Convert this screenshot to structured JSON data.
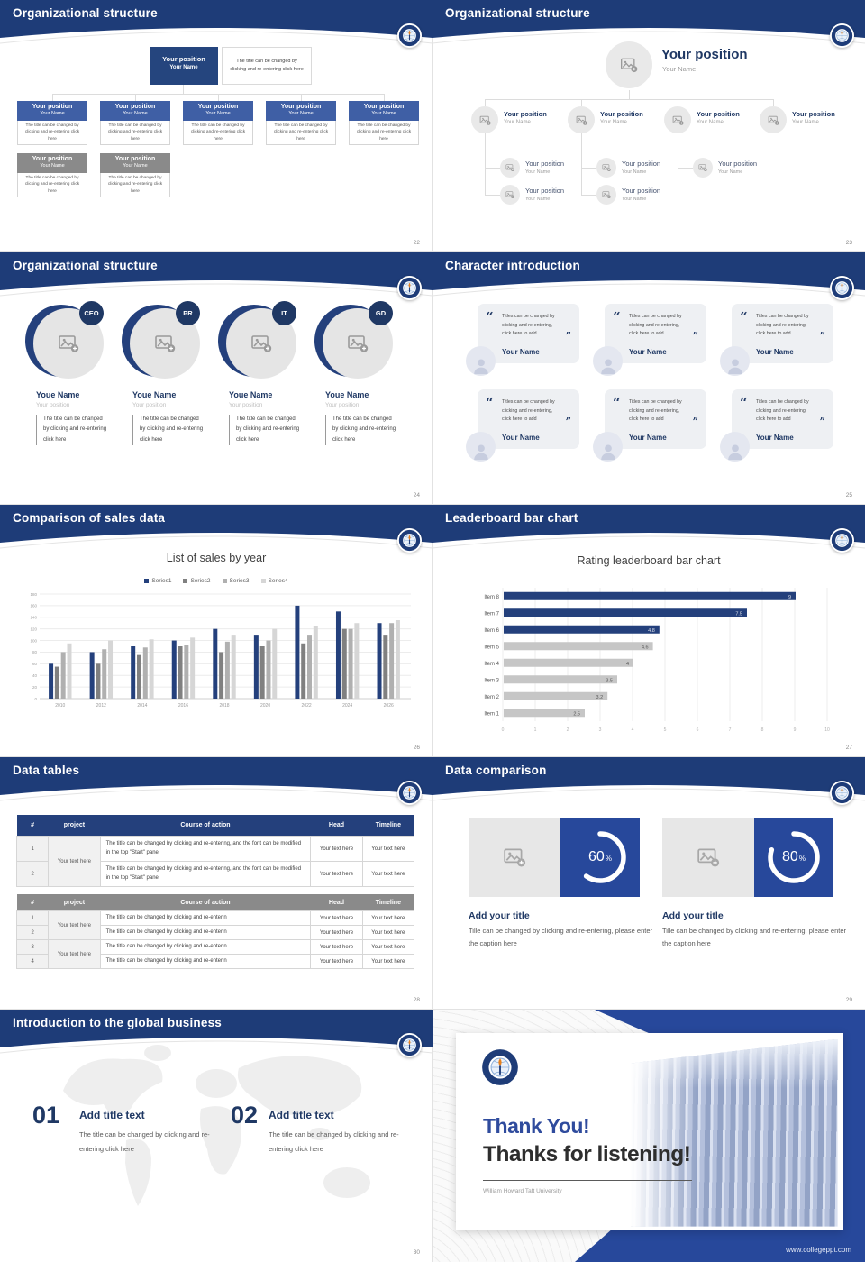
{
  "colors": {
    "navy_header": "#1e3c78",
    "accent": "#1f3864",
    "box_blue": "#3f5fa5",
    "box_gray": "#8a8a8a",
    "donut_blue": "#27489b",
    "bar_navy": "#24407c",
    "bar_gray": "#c6c6c6"
  },
  "texts": {
    "position": "Your position",
    "name": "Your Name",
    "change_click": "The title can be changed by clicking and re-entering click here",
    "youe_name": "Youe Name",
    "quote": "Titles can be changed by clicking and re-entering, click here to add",
    "table_long": "The title can be changed by clicking and re-entering, and the font can be modified in the top \"Start\" panel",
    "table_short": "The title can be changed by clicking and re-enterin",
    "your_text": "Your text here",
    "add_your_title": "Add your title",
    "caption": "Tille can be changed by clicking and re-entering, please enter the caption here",
    "add_title_text": "Add title text",
    "percent": "%"
  },
  "slides": {
    "s22": {
      "title": "Organizational structure",
      "page": "22"
    },
    "s23": {
      "title": "Organizational structure",
      "page": "23"
    },
    "s24": {
      "title": "Organizational structure",
      "page": "24",
      "badges": [
        "CEO",
        "PR",
        "IT",
        "GD"
      ]
    },
    "s25": {
      "title": "Character introduction",
      "page": "25"
    },
    "s26": {
      "title": "Comparison of sales data",
      "page": "26"
    },
    "s27": {
      "title": "Leaderboard bar chart",
      "page": "27"
    },
    "s28": {
      "title": "Data tables",
      "page": "28",
      "columns": [
        "#",
        "project",
        "Course of action",
        "Head",
        "Timeline"
      ],
      "rows1": [
        "1",
        "2"
      ],
      "rows2": [
        "1",
        "2",
        "3",
        "4"
      ]
    },
    "s29": {
      "title": "Data comparison",
      "page": "29"
    },
    "s30": {
      "title": "Introduction to the global business",
      "page": "30",
      "items": [
        {
          "num": "01"
        },
        {
          "num": "02"
        }
      ]
    },
    "thanks": {
      "line1": "Thank You!",
      "line2": "Thanks for listening!",
      "subtitle": "William Howard Taft University",
      "website": "www.collegeppt.com"
    }
  },
  "chart_data": [
    {
      "type": "bar",
      "title": "List of sales by year",
      "categories": [
        "2010",
        "2012",
        "2014",
        "2016",
        "2018",
        "2020",
        "2022",
        "2024",
        "2026"
      ],
      "series": [
        {
          "name": "Series1",
          "color": "#24407c",
          "values": [
            60,
            80,
            90,
            100,
            120,
            110,
            160,
            150,
            130
          ]
        },
        {
          "name": "Series2",
          "color": "#808080",
          "values": [
            55,
            60,
            75,
            90,
            80,
            90,
            95,
            120,
            110
          ]
        },
        {
          "name": "Series3",
          "color": "#b0b0b0",
          "values": [
            80,
            85,
            88,
            92,
            98,
            100,
            110,
            120,
            130
          ]
        },
        {
          "name": "Series4",
          "color": "#d6d6d6",
          "values": [
            95,
            100,
            102,
            105,
            110,
            120,
            125,
            130,
            135
          ]
        }
      ],
      "ylim": [
        0,
        180
      ],
      "ytick": 20,
      "grid": true,
      "legend_position": "top"
    },
    {
      "type": "bar-horizontal",
      "title": "Rating leaderboard bar chart",
      "categories": [
        "Item 8",
        "Item 7",
        "Item 6",
        "Item 5",
        "Item 4",
        "Item 3",
        "Item 2",
        "Item 1"
      ],
      "values": [
        9,
        7.5,
        4.8,
        4.6,
        4,
        3.5,
        3.2,
        2.5
      ],
      "labels": [
        "9",
        "7.5",
        "4.8",
        "4.6",
        "4",
        "3.5",
        "3.2",
        "2.5"
      ],
      "highlight_count": 3,
      "highlight_color": "#24407c",
      "base_color": "#c6c6c6",
      "xlim": [
        0,
        10
      ],
      "xtick": 1
    },
    {
      "type": "donut",
      "values": [
        60,
        80
      ],
      "ring_color": "#ffffff",
      "box_color": "#27489b"
    }
  ]
}
